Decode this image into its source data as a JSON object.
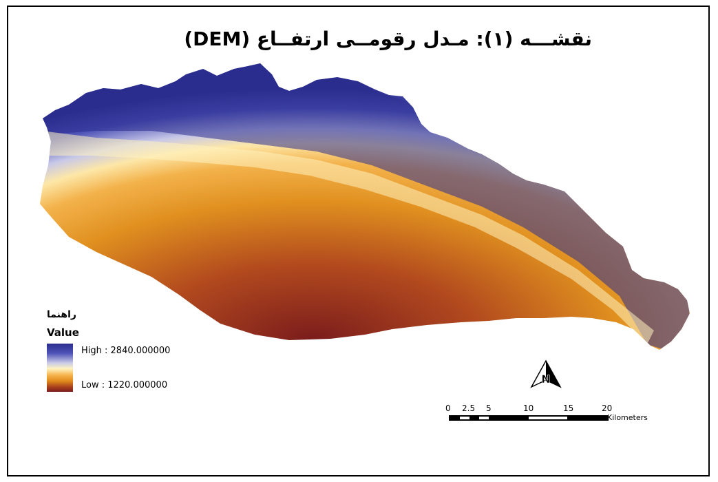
{
  "map": {
    "title": "نقشـــه (۱): مـدل رقومــی ارتفــاع (DEM)",
    "colors": {
      "high": "#2b2e8e",
      "mid_high": "#c9c9e8",
      "mid": "#fff3c0",
      "mid_low": "#e8962a",
      "low": "#7b1c1c"
    }
  },
  "legend": {
    "title": "راهنما",
    "field": "Value",
    "high_label": "High : 2840.000000",
    "low_label": "Low : 1220.000000"
  },
  "north_arrow": {
    "label": "N",
    "icon": "north-arrow-icon"
  },
  "scale_bar": {
    "ticks": [
      "0",
      "2.5",
      "5",
      "10",
      "15",
      "20"
    ],
    "unit": "Kilometers"
  }
}
